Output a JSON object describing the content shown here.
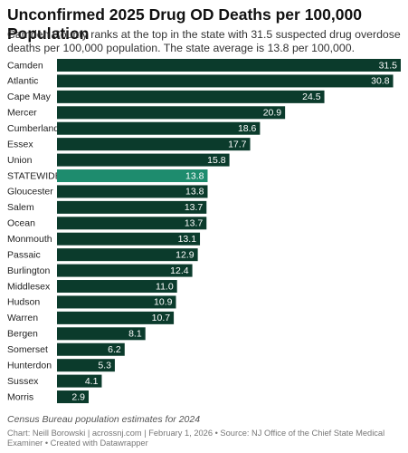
{
  "chart_data": {
    "type": "bar",
    "orientation": "horizontal",
    "title": "Unconfirmed 2025 Drug OD Deaths per 100,000 Population",
    "subtitle": "Camden County ranks at the top in the state with 31.5 suspected drug overdose deaths per 100,000 population. The state average is 13.8 per 100,000.",
    "categories": [
      "Camden",
      "Atlantic",
      "Cape May",
      "Mercer",
      "Cumberland",
      "Essex",
      "Union",
      "STATEWIDE",
      "Gloucester",
      "Salem",
      "Ocean",
      "Monmouth",
      "Passaic",
      "Burlington",
      "Middlesex",
      "Hudson",
      "Warren",
      "Bergen",
      "Somerset",
      "Hunterdon",
      "Sussex",
      "Morris"
    ],
    "values": [
      31.5,
      30.8,
      24.5,
      20.9,
      18.6,
      17.7,
      15.8,
      13.8,
      13.8,
      13.7,
      13.7,
      13.1,
      12.9,
      12.4,
      11.0,
      10.9,
      10.7,
      8.1,
      6.2,
      5.3,
      4.1,
      2.9
    ],
    "value_labels": [
      "31.5",
      "30.8",
      "24.5",
      "20.9",
      "18.6",
      "17.7",
      "15.8",
      "13.8",
      "13.8",
      "13.7",
      "13.7",
      "13.1",
      "12.9",
      "12.4",
      "11.0",
      "10.9",
      "10.7",
      "8.1",
      "6.2",
      "5.3",
      "4.1",
      "2.9"
    ],
    "colors": [
      "#0b3b2c",
      "#0b3b2c",
      "#0b3b2c",
      "#0b3b2c",
      "#0b3b2c",
      "#0b3b2c",
      "#0b3b2c",
      "#1e8c6e",
      "#0b3b2c",
      "#0b3b2c",
      "#0b3b2c",
      "#0b3b2c",
      "#0b3b2c",
      "#0b3b2c",
      "#0b3b2c",
      "#0b3b2c",
      "#0b3b2c",
      "#0b3b2c",
      "#0b3b2c",
      "#0b3b2c",
      "#0b3b2c",
      "#0b3b2c"
    ],
    "notes": "Census Bureau population estimates for 2024",
    "source": "Chart: Neill Borowski | acrossnj.com | February 1, 2026 • Source: NJ Office of the Chief State Medical Examiner • Created with Datawrapper"
  }
}
